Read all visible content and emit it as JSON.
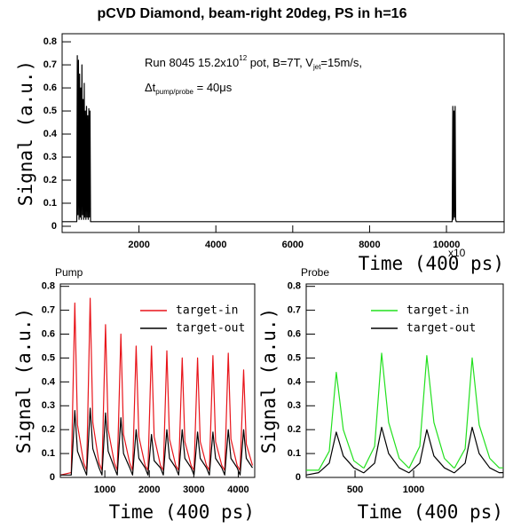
{
  "chart_data": [
    {
      "type": "line",
      "title": "pCVD Diamond, beam-right 20deg, PS in h=16",
      "annotations": [
        [
          "Run 8045 15.2x10",
          "12",
          " pot, B=7T, V",
          "jet",
          "=15m/s,"
        ],
        [
          "Δt",
          "pump/probe",
          " = 40μs"
        ]
      ],
      "x_label": "Time (400 ps)",
      "x_label_exponent": "x10",
      "y_label": "Signal (a.u.)",
      "xlim": [
        0,
        11500
      ],
      "ylim": [
        -0.027,
        0.835
      ],
      "xticks": [
        2000,
        4000,
        6000,
        8000,
        10000
      ],
      "yticks": [
        0,
        0.1,
        0.2,
        0.3,
        0.4,
        0.5,
        0.6,
        0.7,
        0.8
      ],
      "x": [
        0,
        380,
        395,
        410,
        425,
        440,
        455,
        470,
        485,
        500,
        515,
        530,
        545,
        560,
        575,
        590,
        605,
        620,
        635,
        650,
        665,
        680,
        695,
        710,
        725,
        740,
        10150,
        10165,
        10180,
        10195,
        10210,
        10225,
        10240,
        10255,
        11500
      ],
      "series": [
        {
          "color": "#000000",
          "values": [
            0.02,
            0.02,
            0.74,
            0.05,
            0.72,
            0.03,
            0.66,
            0.04,
            0.6,
            0.03,
            0.7,
            0.05,
            0.55,
            0.03,
            0.62,
            0.04,
            0.5,
            0.03,
            0.52,
            0.04,
            0.48,
            0.03,
            0.51,
            0.04,
            0.5,
            0.02,
            0.02,
            0.52,
            0.03,
            0.5,
            0.04,
            0.52,
            0.03,
            0.02,
            0.02
          ]
        }
      ]
    },
    {
      "type": "line",
      "title": "Pump",
      "x_label": "Time (400 ps)",
      "y_label": "Signal (a.u.)",
      "xlim": [
        0,
        4370
      ],
      "ylim": [
        0,
        0.81
      ],
      "xticks": [
        1000,
        2000,
        3000,
        4000
      ],
      "yticks": [
        0,
        0.1,
        0.2,
        0.3,
        0.4,
        0.5,
        0.6,
        0.7,
        0.8
      ],
      "x": [
        0,
        245,
        325,
        385,
        525,
        590,
        670,
        730,
        870,
        935,
        1015,
        1075,
        1215,
        1280,
        1360,
        1420,
        1560,
        1625,
        1705,
        1765,
        1905,
        1970,
        2050,
        2110,
        2250,
        2315,
        2395,
        2455,
        2595,
        2660,
        2740,
        2800,
        2940,
        3005,
        3085,
        3145,
        3285,
        3350,
        3430,
        3490,
        3630,
        3695,
        3775,
        3835,
        3975,
        4040,
        4120,
        4180,
        4320
      ],
      "series": [
        {
          "name": "target-in",
          "color": "#e8141a",
          "values": [
            0.01,
            0.02,
            0.73,
            0.22,
            0.06,
            0.03,
            0.75,
            0.23,
            0.06,
            0.03,
            0.64,
            0.2,
            0.06,
            0.03,
            0.6,
            0.18,
            0.06,
            0.03,
            0.55,
            0.17,
            0.05,
            0.03,
            0.55,
            0.17,
            0.05,
            0.03,
            0.53,
            0.16,
            0.05,
            0.03,
            0.5,
            0.15,
            0.05,
            0.03,
            0.5,
            0.15,
            0.05,
            0.03,
            0.51,
            0.15,
            0.05,
            0.03,
            0.52,
            0.16,
            0.05,
            0.03,
            0.45,
            0.14,
            0.05
          ]
        },
        {
          "name": "target-out",
          "color": "#000000",
          "values": [
            0.01,
            0.01,
            0.28,
            0.11,
            0.04,
            0.01,
            0.29,
            0.12,
            0.04,
            0.01,
            0.27,
            0.11,
            0.04,
            0.01,
            0.25,
            0.1,
            0.04,
            0.01,
            0.2,
            0.08,
            0.04,
            0.01,
            0.18,
            0.07,
            0.04,
            0.01,
            0.2,
            0.08,
            0.04,
            0.01,
            0.2,
            0.08,
            0.04,
            0.01,
            0.19,
            0.08,
            0.04,
            0.01,
            0.19,
            0.08,
            0.04,
            0.01,
            0.2,
            0.08,
            0.04,
            0.01,
            0.2,
            0.08,
            0.04
          ]
        }
      ]
    },
    {
      "type": "line",
      "title": "Probe",
      "x_label": "Time (400 ps)",
      "y_label": "Signal (a.u.)",
      "xlim": [
        83,
        1765
      ],
      "ylim": [
        0,
        0.81
      ],
      "xticks": [
        500,
        1000
      ],
      "yticks": [
        0,
        0.1,
        0.2,
        0.3,
        0.4,
        0.5,
        0.6,
        0.7,
        0.8
      ],
      "x": [
        83,
        190,
        280,
        340,
        400,
        490,
        570,
        577,
        667,
        727,
        787,
        877,
        957,
        963,
        1053,
        1113,
        1173,
        1263,
        1343,
        1350,
        1440,
        1500,
        1560,
        1650,
        1730,
        1765
      ],
      "series": [
        {
          "name": "target-in",
          "color": "#22e01e",
          "values": [
            0.03,
            0.03,
            0.11,
            0.44,
            0.2,
            0.07,
            0.04,
            0.04,
            0.13,
            0.52,
            0.23,
            0.08,
            0.04,
            0.04,
            0.13,
            0.51,
            0.23,
            0.08,
            0.04,
            0.04,
            0.12,
            0.5,
            0.22,
            0.08,
            0.04,
            0.04
          ]
        },
        {
          "name": "target-out",
          "color": "#000000",
          "values": [
            0.01,
            0.02,
            0.06,
            0.19,
            0.09,
            0.04,
            0.02,
            0.02,
            0.06,
            0.21,
            0.1,
            0.04,
            0.02,
            0.02,
            0.06,
            0.2,
            0.09,
            0.04,
            0.02,
            0.02,
            0.06,
            0.21,
            0.1,
            0.04,
            0.02,
            0.02
          ]
        }
      ]
    }
  ]
}
